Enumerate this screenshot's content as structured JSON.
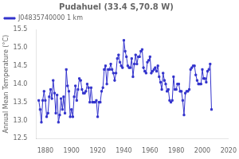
{
  "chart_data": {
    "type": "line",
    "title": "Pudahuel (33.4 S,70.8 W)",
    "y_label": "Annual Mean Temperature (°C)",
    "x": [
      1875,
      1876,
      1877,
      1878,
      1879,
      1880,
      1881,
      1882,
      1883,
      1884,
      1885,
      1886,
      1887,
      1888,
      1889,
      1890,
      1891,
      1892,
      1893,
      1894,
      1895,
      1896,
      1897,
      1898,
      1899,
      1900,
      1901,
      1902,
      1903,
      1904,
      1905,
      1906,
      1907,
      1908,
      1909,
      1910,
      1911,
      1912,
      1913,
      1914,
      1915,
      1916,
      1917,
      1918,
      1919,
      1920,
      1921,
      1922,
      1923,
      1924,
      1925,
      1926,
      1927,
      1928,
      1929,
      1930,
      1931,
      1932,
      1933,
      1934,
      1935,
      1936,
      1937,
      1938,
      1939,
      1940,
      1941,
      1942,
      1943,
      1944,
      1945,
      1946,
      1947,
      1948,
      1949,
      1950,
      1951,
      1952,
      1953,
      1954,
      1955,
      1956,
      1957,
      1958,
      1959,
      1960,
      1961,
      1962,
      1963,
      1964,
      1965,
      1966,
      1967,
      1968,
      1969,
      1970,
      1971,
      1972,
      1973,
      1974,
      1975,
      1976,
      1977,
      1978,
      1979,
      1980,
      1981,
      1982,
      1983,
      1984,
      1985,
      1986,
      1987,
      1988,
      1989,
      1990,
      1991,
      1992,
      1993,
      1994,
      1995,
      1996,
      1997,
      1998,
      1999,
      2000,
      2001,
      2002,
      2003,
      2004,
      2005,
      2006,
      2007
    ],
    "series": [
      {
        "name": "J04835740000 1 km",
        "color": "#3333cc",
        "marker": "square",
        "line_style": "solid",
        "values": [
          13.55,
          13.3,
          12.95,
          13.55,
          13.8,
          13.55,
          13.1,
          13.2,
          13.65,
          13.85,
          13.6,
          14.1,
          13.75,
          13.2,
          13.7,
          12.95,
          13.15,
          13.6,
          13.3,
          13.65,
          13.2,
          14.4,
          13.95,
          13.8,
          13.1,
          13.3,
          13.1,
          13.65,
          13.95,
          13.55,
          13.85,
          14.15,
          14.1,
          13.85,
          13.75,
          13.75,
          13.8,
          14.0,
          13.9,
          13.5,
          13.9,
          13.5,
          13.5,
          13.5,
          13.55,
          13.1,
          13.5,
          13.5,
          13.8,
          13.9,
          14.4,
          14.5,
          14.0,
          14.4,
          14.4,
          14.55,
          14.4,
          14.3,
          14.1,
          14.3,
          14.7,
          14.8,
          14.6,
          14.5,
          14.45,
          15.2,
          14.9,
          14.75,
          14.5,
          14.45,
          14.45,
          14.7,
          14.2,
          14.55,
          14.8,
          14.55,
          14.75,
          14.75,
          14.9,
          14.95,
          14.45,
          14.35,
          14.3,
          14.6,
          14.65,
          14.75,
          14.3,
          14.35,
          14.4,
          14.45,
          14.35,
          14.5,
          14.2,
          14.05,
          13.85,
          14.3,
          14.1,
          14.0,
          13.8,
          13.85,
          13.55,
          13.5,
          13.55,
          14.2,
          13.85,
          13.85,
          14.0,
          14.0,
          13.8,
          13.8,
          13.55,
          13.15,
          13.75,
          13.8,
          13.8,
          13.85,
          14.4,
          14.45,
          14.5,
          14.5,
          14.25,
          14.1,
          14.0,
          14.0,
          14.0,
          14.4,
          14.15,
          14.15,
          14.05,
          14.35,
          14.4,
          14.55,
          13.3
        ]
      }
    ],
    "xlim": [
      1873,
      2020
    ],
    "ylim": [
      12.5,
      15.5
    ],
    "xticks": [
      1880,
      1900,
      1920,
      1940,
      1960,
      1980,
      2000,
      2020
    ],
    "yticks": [
      12.5,
      {
        "value": 13,
        "label": "13.0"
      },
      13.5,
      {
        "value": 14,
        "label": "14.0"
      },
      14.5,
      {
        "value": 15,
        "label": "15.0"
      },
      15.5
    ],
    "grid": false,
    "legend": "upper left"
  }
}
